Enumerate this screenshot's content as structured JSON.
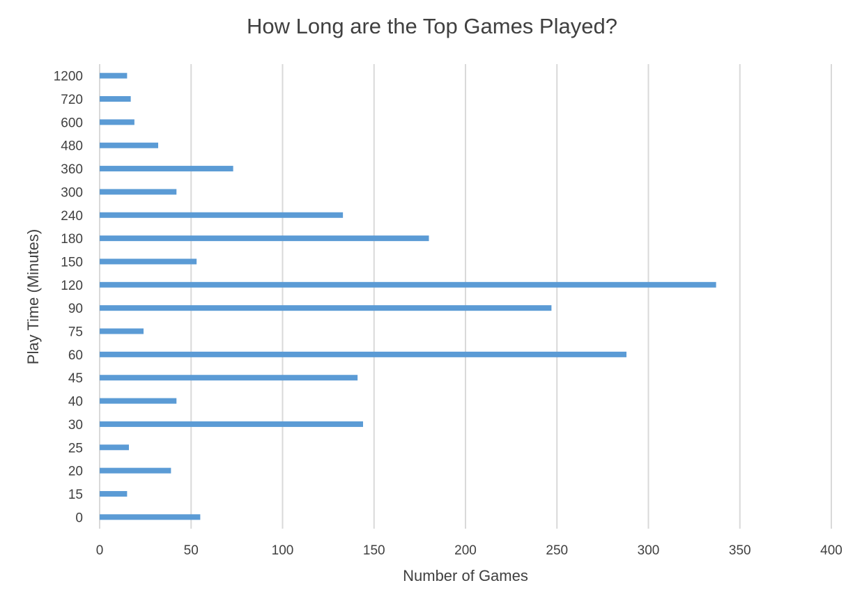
{
  "chart_data": {
    "type": "bar",
    "orientation": "horizontal",
    "title": "How Long are the Top Games Played?",
    "xlabel": "Number of Games",
    "ylabel": "Play Time (Minutes)",
    "xlim": [
      0,
      400
    ],
    "xticks": [
      0,
      50,
      100,
      150,
      200,
      250,
      300,
      350,
      400
    ],
    "categories": [
      "0",
      "15",
      "20",
      "25",
      "30",
      "40",
      "45",
      "60",
      "75",
      "90",
      "120",
      "150",
      "180",
      "240",
      "300",
      "360",
      "480",
      "600",
      "720",
      "1200"
    ],
    "values": [
      55,
      15,
      39,
      16,
      144,
      42,
      141,
      288,
      24,
      247,
      337,
      53,
      180,
      133,
      42,
      73,
      32,
      19,
      17,
      15
    ],
    "bar_color": "#5b9bd5",
    "grid": true,
    "legend": "none"
  }
}
